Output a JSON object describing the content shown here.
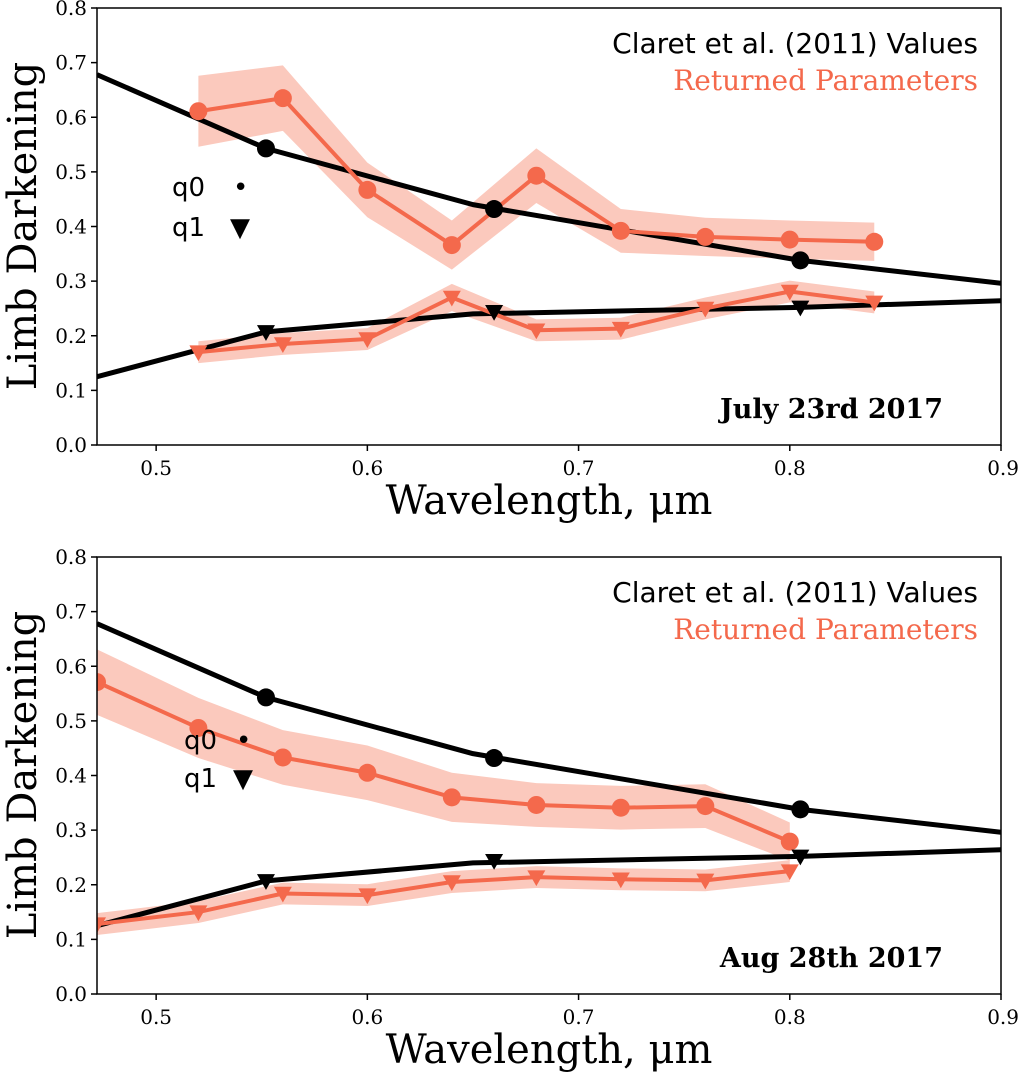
{
  "colors": {
    "claret": "#000000",
    "returned": "#f4694c",
    "band": "#fbc9bd"
  },
  "chart_data": [
    {
      "type": "line",
      "date_label": "July 23rd 2017",
      "xlabel": "Wavelength, μm",
      "ylabel": "Limb Darkening",
      "xlim": [
        0.472,
        0.9
      ],
      "ylim": [
        0.0,
        0.8
      ],
      "xticks": [
        "0.5",
        "0.6",
        "0.7",
        "0.8",
        "0.9"
      ],
      "yticks": [
        "0.0",
        "0.1",
        "0.2",
        "0.3",
        "0.4",
        "0.5",
        "0.6",
        "0.7",
        "0.8"
      ],
      "legend": {
        "claret": "Claret et al. (2011) Values",
        "returned": "Returned Parameters"
      },
      "marker_legend": {
        "q0": "q0",
        "q0_symbol": "•",
        "q1": "q1",
        "q1_symbol": "▼"
      },
      "claret_q0_curve": {
        "x": [
          0.472,
          0.552,
          0.65,
          0.805,
          0.9
        ],
        "y": [
          0.678,
          0.543,
          0.44,
          0.338,
          0.296
        ]
      },
      "claret_q0_points": {
        "x": [
          0.552,
          0.66,
          0.805
        ],
        "y": [
          0.543,
          0.432,
          0.338
        ]
      },
      "claret_q1_curve": {
        "x": [
          0.472,
          0.552,
          0.65,
          0.805,
          0.9
        ],
        "y": [
          0.125,
          0.207,
          0.24,
          0.252,
          0.264
        ]
      },
      "claret_q1_points": {
        "x": [
          0.552,
          0.66,
          0.805
        ],
        "y": [
          0.207,
          0.244,
          0.252
        ]
      },
      "returned_q0": {
        "x": [
          0.52,
          0.56,
          0.6,
          0.64,
          0.68,
          0.72,
          0.76,
          0.8,
          0.84
        ],
        "y": [
          0.611,
          0.635,
          0.467,
          0.366,
          0.493,
          0.392,
          0.381,
          0.376,
          0.372
        ],
        "err": [
          0.065,
          0.06,
          0.05,
          0.045,
          0.05,
          0.04,
          0.035,
          0.035,
          0.035
        ]
      },
      "returned_q1": {
        "x": [
          0.52,
          0.56,
          0.6,
          0.64,
          0.68,
          0.72,
          0.76,
          0.8,
          0.84
        ],
        "y": [
          0.17,
          0.185,
          0.194,
          0.27,
          0.21,
          0.213,
          0.25,
          0.281,
          0.261
        ],
        "err": [
          0.02,
          0.02,
          0.02,
          0.025,
          0.02,
          0.02,
          0.02,
          0.02,
          0.02
        ]
      }
    },
    {
      "type": "line",
      "date_label": "Aug 28th 2017",
      "xlabel": "Wavelength, μm",
      "ylabel": "Limb Darkening",
      "xlim": [
        0.472,
        0.9
      ],
      "ylim": [
        0.0,
        0.8
      ],
      "xticks": [
        "0.5",
        "0.6",
        "0.7",
        "0.8",
        "0.9"
      ],
      "yticks": [
        "0.0",
        "0.1",
        "0.2",
        "0.3",
        "0.4",
        "0.5",
        "0.6",
        "0.7",
        "0.8"
      ],
      "legend": {
        "claret": "Claret et al. (2011) Values",
        "returned": "Returned Parameters"
      },
      "marker_legend": {
        "q0": "q0",
        "q0_symbol": "•",
        "q1": "q1",
        "q1_symbol": "▼"
      },
      "claret_q0_curve": {
        "x": [
          0.472,
          0.552,
          0.65,
          0.805,
          0.9
        ],
        "y": [
          0.678,
          0.543,
          0.44,
          0.338,
          0.296
        ]
      },
      "claret_q0_points": {
        "x": [
          0.552,
          0.66,
          0.805
        ],
        "y": [
          0.543,
          0.432,
          0.338
        ]
      },
      "claret_q1_curve": {
        "x": [
          0.472,
          0.552,
          0.65,
          0.805,
          0.9
        ],
        "y": [
          0.125,
          0.207,
          0.24,
          0.252,
          0.264
        ]
      },
      "claret_q1_points": {
        "x": [
          0.552,
          0.66,
          0.805
        ],
        "y": [
          0.207,
          0.244,
          0.252
        ]
      },
      "returned_q0": {
        "x": [
          0.472,
          0.52,
          0.56,
          0.6,
          0.64,
          0.68,
          0.72,
          0.76,
          0.8
        ],
        "y": [
          0.571,
          0.487,
          0.433,
          0.405,
          0.36,
          0.346,
          0.341,
          0.344,
          0.279
        ],
        "err": [
          0.06,
          0.055,
          0.05,
          0.05,
          0.045,
          0.04,
          0.04,
          0.04,
          0.035
        ]
      },
      "returned_q1": {
        "x": [
          0.472,
          0.52,
          0.56,
          0.6,
          0.64,
          0.68,
          0.72,
          0.76,
          0.8
        ],
        "y": [
          0.128,
          0.15,
          0.184,
          0.181,
          0.205,
          0.214,
          0.21,
          0.208,
          0.225
        ],
        "err": [
          0.02,
          0.02,
          0.02,
          0.02,
          0.02,
          0.02,
          0.02,
          0.02,
          0.02
        ]
      }
    }
  ]
}
